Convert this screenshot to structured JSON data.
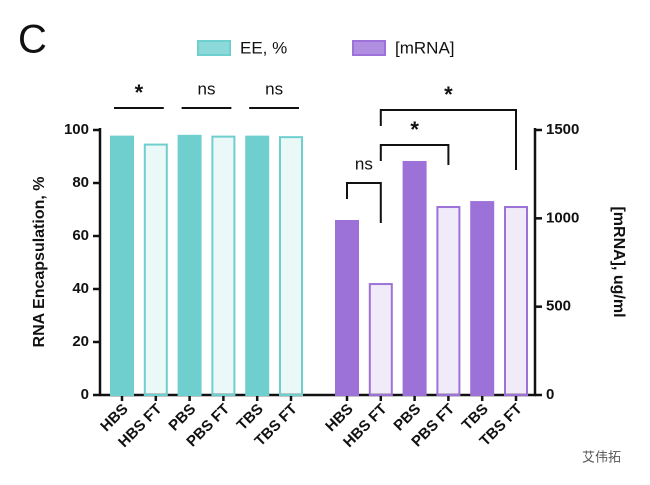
{
  "chart_data": {
    "type": "bar",
    "panel_label": "C",
    "y_label": "RNA Encapsulation, %",
    "y2_label": "[mRNA], ug/ml",
    "categories": [
      "HBS",
      "HBS FT",
      "PBS",
      "PBS FT",
      "TBS",
      "TBS FT",
      "HBS",
      "HBS FT",
      "PBS",
      "PBS FT",
      "TBS",
      "TBS FT"
    ],
    "series": [
      {
        "name": "EE, %",
        "color": "#6fcfcf",
        "values": [
          97.5,
          94.5,
          97.8,
          97.5,
          97.5,
          97.3,
          null,
          null,
          null,
          null,
          null,
          null
        ]
      },
      {
        "name": "[mRNA]",
        "color": "#9c72d8",
        "axis": "y2",
        "values": [
          null,
          null,
          null,
          null,
          null,
          null,
          985,
          628,
          1319,
          1064,
          1092,
          1064
        ]
      }
    ],
    "ylim": [
      0,
      100
    ],
    "yticks": [
      0,
      20,
      40,
      60,
      80,
      100
    ],
    "y2lim": [
      0,
      1500
    ],
    "y2ticks": [
      0,
      500,
      1000,
      1500
    ],
    "annotations": [
      "*",
      "ns",
      "ns",
      "ns",
      "*",
      "*"
    ],
    "watermark": "艾伟拓"
  }
}
